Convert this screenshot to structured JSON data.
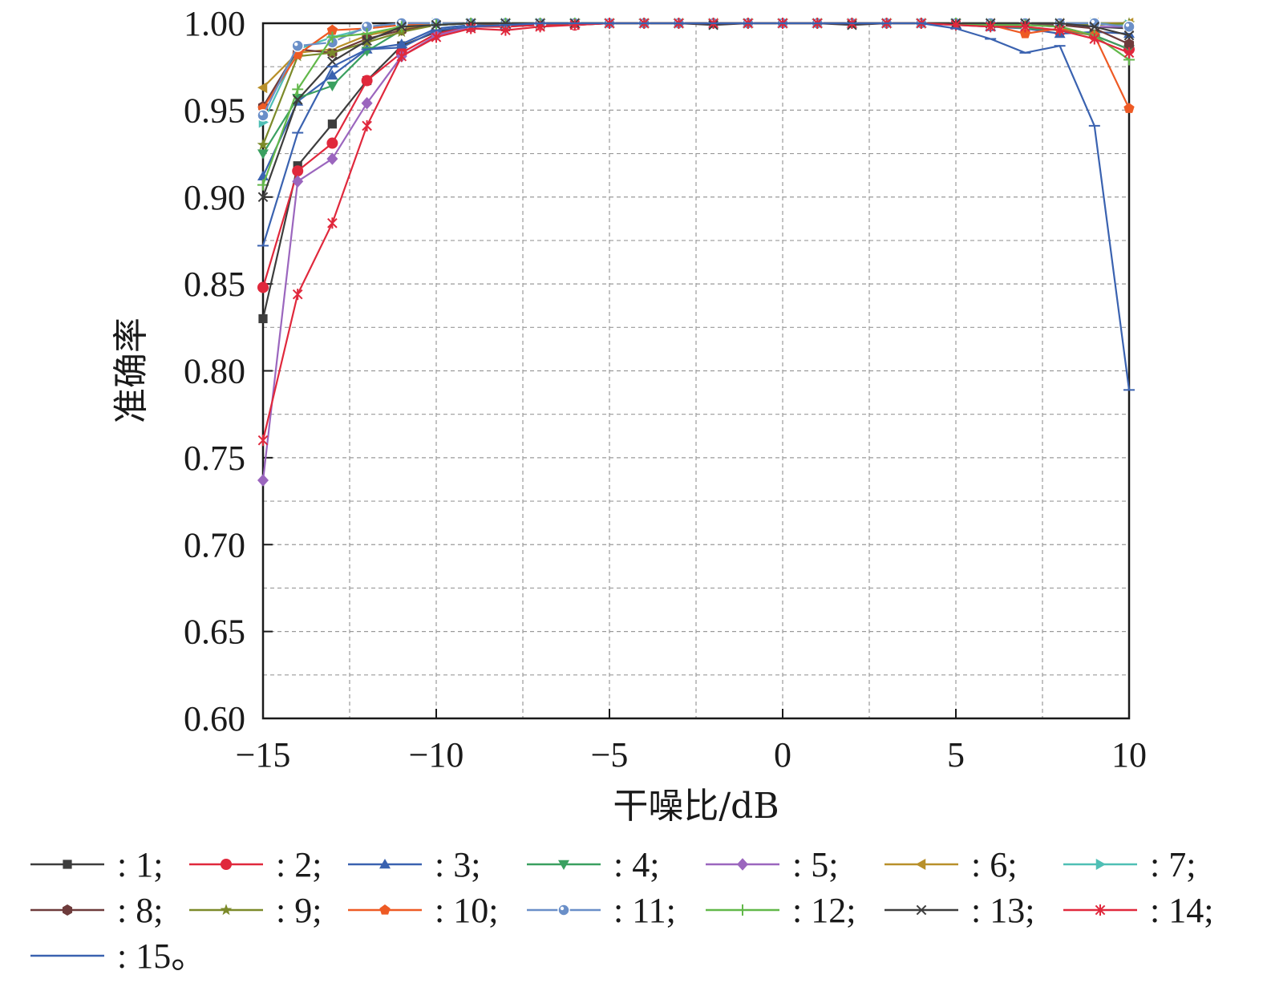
{
  "chart_data": {
    "type": "line",
    "xlabel": "干噪比/dB",
    "ylabel": "准确率",
    "xlim": [
      -15,
      10
    ],
    "ylim": [
      0.6,
      1.0
    ],
    "x_ticks": [
      -15,
      -10,
      -5,
      0,
      5,
      10
    ],
    "x_tick_labels": [
      "−15",
      "−10",
      "−5",
      "0",
      "5",
      "10"
    ],
    "y_ticks": [
      0.6,
      0.65,
      0.7,
      0.75,
      0.8,
      0.85,
      0.9,
      0.95,
      1.0
    ],
    "y_tick_labels": [
      "0.60",
      "0.65",
      "0.70",
      "0.75",
      "0.80",
      "0.85",
      "0.90",
      "0.95",
      "1.00"
    ],
    "grid": "dashed",
    "legend_position": "bottom",
    "x": [
      -15,
      -14,
      -13,
      -12,
      -11,
      -10,
      -9,
      -8,
      -7,
      -6,
      -5,
      -4,
      -3,
      -2,
      -1,
      0,
      1,
      2,
      3,
      4,
      5,
      6,
      7,
      8,
      9,
      10
    ],
    "series": [
      {
        "name": ": 1;",
        "color": "#3d3d3d",
        "marker": "square",
        "values": [
          0.83,
          0.918,
          0.942,
          0.967,
          0.987,
          0.995,
          0.998,
          0.998,
          0.999,
          0.999,
          1.0,
          1.0,
          1.0,
          1.0,
          1.0,
          1.0,
          1.0,
          1.0,
          1.0,
          1.0,
          1.0,
          1.0,
          1.0,
          0.999,
          0.998,
          0.997
        ]
      },
      {
        "name": ": 2;",
        "color": "#e0283c",
        "marker": "circle",
        "values": [
          0.848,
          0.915,
          0.931,
          0.967,
          0.983,
          0.994,
          0.998,
          0.998,
          0.999,
          0.999,
          1.0,
          1.0,
          1.0,
          1.0,
          1.0,
          1.0,
          1.0,
          1.0,
          1.0,
          1.0,
          1.0,
          0.999,
          0.999,
          0.998,
          0.993,
          0.985
        ]
      },
      {
        "name": ": 3;",
        "color": "#3a62b0",
        "marker": "triangle-up",
        "values": [
          0.912,
          0.955,
          0.97,
          0.985,
          0.988,
          0.997,
          0.999,
          0.999,
          1.0,
          1.0,
          1.0,
          1.0,
          1.0,
          1.0,
          1.0,
          1.0,
          1.0,
          1.0,
          1.0,
          1.0,
          0.999,
          0.998,
          0.997,
          0.994,
          0.995,
          0.994
        ]
      },
      {
        "name": ": 4;",
        "color": "#3aa060",
        "marker": "triangle-down",
        "values": [
          0.925,
          0.957,
          0.964,
          0.984,
          0.996,
          0.999,
          1.0,
          1.0,
          1.0,
          1.0,
          1.0,
          1.0,
          1.0,
          1.0,
          1.0,
          1.0,
          1.0,
          1.0,
          1.0,
          1.0,
          1.0,
          0.999,
          0.997,
          0.996,
          0.993,
          0.985
        ]
      },
      {
        "name": ": 5;",
        "color": "#9b66be",
        "marker": "diamond",
        "values": [
          0.737,
          0.909,
          0.922,
          0.954,
          0.981,
          0.993,
          0.998,
          0.999,
          1.0,
          1.0,
          1.0,
          1.0,
          1.0,
          1.0,
          1.0,
          1.0,
          1.0,
          1.0,
          1.0,
          1.0,
          1.0,
          0.999,
          0.999,
          0.999,
          0.998,
          0.998
        ]
      },
      {
        "name": ": 6;",
        "color": "#b8902a",
        "marker": "triangle-left",
        "values": [
          0.963,
          0.983,
          0.985,
          0.993,
          0.997,
          0.999,
          1.0,
          1.0,
          1.0,
          1.0,
          1.0,
          1.0,
          1.0,
          1.0,
          1.0,
          1.0,
          1.0,
          1.0,
          1.0,
          1.0,
          1.0,
          1.0,
          1.0,
          1.0,
          1.0,
          1.0
        ]
      },
      {
        "name": ": 7;",
        "color": "#4fbfb5",
        "marker": "triangle-right",
        "values": [
          0.943,
          0.985,
          0.992,
          0.997,
          0.999,
          1.0,
          1.0,
          1.0,
          1.0,
          1.0,
          1.0,
          1.0,
          1.0,
          1.0,
          1.0,
          1.0,
          1.0,
          1.0,
          1.0,
          1.0,
          1.0,
          1.0,
          1.0,
          1.0,
          1.0,
          0.999
        ]
      },
      {
        "name": ": 8;",
        "color": "#6e3b3b",
        "marker": "hexagon",
        "values": [
          0.952,
          0.985,
          0.983,
          0.991,
          0.996,
          0.999,
          1.0,
          0.999,
          1.0,
          1.0,
          1.0,
          1.0,
          1.0,
          1.0,
          1.0,
          1.0,
          1.0,
          1.0,
          1.0,
          1.0,
          1.0,
          0.999,
          1.0,
          0.999,
          0.997,
          0.988
        ]
      },
      {
        "name": ": 9;",
        "color": "#7c8a2a",
        "marker": "star",
        "values": [
          0.93,
          0.981,
          0.983,
          0.989,
          0.995,
          0.999,
          1.0,
          1.0,
          1.0,
          1.0,
          1.0,
          1.0,
          1.0,
          1.0,
          1.0,
          1.0,
          1.0,
          1.0,
          1.0,
          1.0,
          1.0,
          1.0,
          1.0,
          1.0,
          0.999,
          1.0
        ]
      },
      {
        "name": ": 10;",
        "color": "#ee5a24",
        "marker": "pentagon",
        "values": [
          0.951,
          0.982,
          0.996,
          0.997,
          0.999,
          1.0,
          1.0,
          1.0,
          1.0,
          1.0,
          1.0,
          1.0,
          1.0,
          1.0,
          1.0,
          1.0,
          1.0,
          1.0,
          1.0,
          1.0,
          1.0,
          0.999,
          0.994,
          0.997,
          0.993,
          0.951
        ]
      },
      {
        "name": ": 11;",
        "color": "#6a8fc8",
        "marker": "circle-dot",
        "values": [
          0.947,
          0.987,
          0.989,
          0.998,
          1.0,
          1.0,
          1.0,
          1.0,
          1.0,
          1.0,
          1.0,
          1.0,
          1.0,
          1.0,
          1.0,
          1.0,
          1.0,
          1.0,
          1.0,
          1.0,
          1.0,
          1.0,
          1.0,
          1.0,
          1.0,
          0.998
        ]
      },
      {
        "name": ": 12;",
        "color": "#62b84a",
        "marker": "plus",
        "values": [
          0.907,
          0.962,
          0.992,
          0.994,
          0.998,
          0.999,
          1.0,
          1.0,
          1.0,
          1.0,
          1.0,
          1.0,
          1.0,
          1.0,
          1.0,
          1.0,
          1.0,
          1.0,
          1.0,
          1.0,
          1.0,
          0.999,
          0.999,
          0.998,
          0.993,
          0.979
        ]
      },
      {
        "name": ": 13;",
        "color": "#3d3d3d",
        "marker": "x",
        "values": [
          0.9,
          0.956,
          0.978,
          0.99,
          0.998,
          0.999,
          1.0,
          1.0,
          1.0,
          1.0,
          1.0,
          1.0,
          1.0,
          0.999,
          1.0,
          1.0,
          1.0,
          0.999,
          1.0,
          1.0,
          1.0,
          1.0,
          1.0,
          1.0,
          0.998,
          0.993
        ]
      },
      {
        "name": ": 14;",
        "color": "#e0283c",
        "marker": "asterisk",
        "values": [
          0.76,
          0.844,
          0.885,
          0.941,
          0.981,
          0.992,
          0.997,
          0.996,
          0.998,
          0.999,
          1.0,
          1.0,
          1.0,
          1.0,
          1.0,
          1.0,
          1.0,
          1.0,
          1.0,
          1.0,
          0.999,
          0.998,
          0.998,
          0.996,
          0.991,
          0.983
        ]
      },
      {
        "name": ": 15。",
        "color": "#3a62b0",
        "marker": "hbar",
        "values": [
          0.872,
          0.937,
          0.975,
          0.985,
          0.986,
          0.996,
          0.998,
          0.999,
          1.0,
          1.0,
          1.0,
          1.0,
          1.0,
          1.0,
          1.0,
          1.0,
          1.0,
          1.0,
          1.0,
          1.0,
          0.997,
          0.991,
          0.983,
          0.987,
          0.941,
          0.789
        ]
      }
    ]
  }
}
